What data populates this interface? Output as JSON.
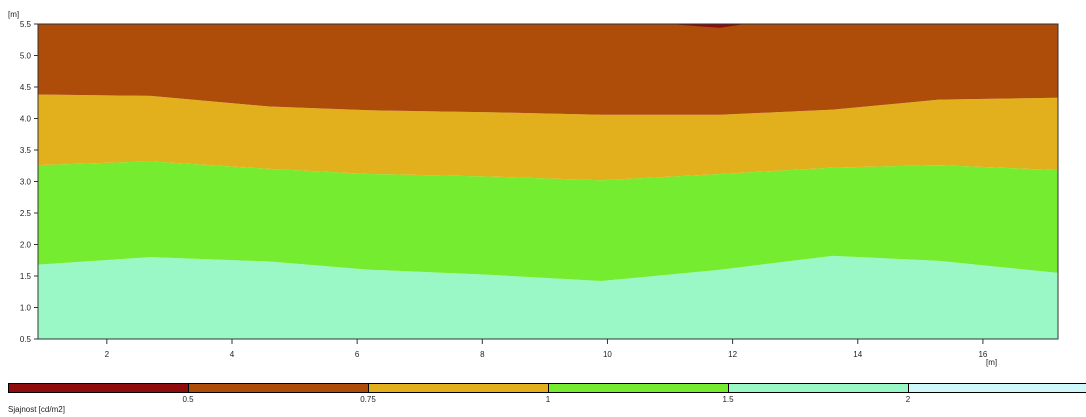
{
  "chart_data": {
    "type": "heatmap",
    "y_unit": "[m]",
    "x_unit": "[m]",
    "xlim": [
      0.9,
      17.2
    ],
    "ylim": [
      0.5,
      5.5
    ],
    "x_ticks": [
      2,
      4,
      6,
      8,
      10,
      12,
      14,
      16
    ],
    "x_tick_labels": [
      "2",
      "4",
      "6",
      "8",
      "10",
      "12",
      "14",
      "16"
    ],
    "y_ticks": [
      0.5,
      1.0,
      1.5,
      2.0,
      2.5,
      3.0,
      3.5,
      4.0,
      4.5,
      5.0,
      5.5
    ],
    "y_tick_labels": [
      "0.5",
      "1.0",
      "1.5",
      "2.0",
      "2.5",
      "3.0",
      "3.5",
      "4.0",
      "4.5",
      "5.0",
      "5.5"
    ],
    "band_colors": [
      "#9af8c6",
      "#76ec31",
      "#e3b01d",
      "#ae4c0a",
      "#8e0c0c"
    ],
    "boundaries": [
      {
        "level": "1.5",
        "x": [
          0.9,
          2.7,
          4.6,
          6.2,
          8.1,
          9.9,
          11.8,
          13.6,
          15.3,
          17.2
        ],
        "y": [
          1.68,
          1.8,
          1.73,
          1.6,
          1.52,
          1.42,
          1.6,
          1.82,
          1.74,
          1.55
        ]
      },
      {
        "level": "1",
        "x": [
          0.9,
          2.7,
          4.6,
          6.2,
          8.1,
          9.9,
          11.8,
          13.6,
          15.3,
          17.2
        ],
        "y": [
          3.26,
          3.32,
          3.2,
          3.12,
          3.08,
          3.02,
          3.12,
          3.22,
          3.26,
          3.18
        ]
      },
      {
        "level": "0.75",
        "x": [
          0.9,
          2.7,
          4.6,
          6.2,
          8.1,
          9.9,
          11.8,
          13.6,
          15.3,
          17.2
        ],
        "y": [
          4.38,
          4.36,
          4.19,
          4.13,
          4.1,
          4.06,
          4.06,
          4.14,
          4.3,
          4.33
        ]
      }
    ],
    "top_spot": {
      "x": [
        11.0,
        11.5,
        11.8,
        12.2
      ],
      "y": [
        5.5,
        5.46,
        5.44,
        5.5
      ]
    },
    "legend": {
      "title": "Sjajnost [cd/m2]",
      "values": [
        "0.5",
        "0.75",
        "1",
        "1.5",
        "2"
      ],
      "colors": [
        "#8e0c0c",
        "#ae4c0a",
        "#e3b01d",
        "#76ec31",
        "#9af8c6",
        "#cff8fb"
      ]
    }
  }
}
